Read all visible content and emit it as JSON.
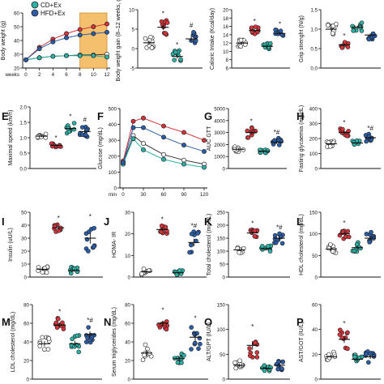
{
  "legend": {
    "items": [
      {
        "label": "CD+Ex",
        "color": "#2ab3a6"
      },
      {
        "label": "HFD+Ex",
        "color": "#2a5ea8"
      }
    ]
  },
  "colors": {
    "CD": "#ffffff",
    "HFD": "#d8323a",
    "CD+Ex": "#2ab3a6",
    "HFD+Ex": "#2a5ea8",
    "highlight": "#f5c06e"
  },
  "chart_data": [
    {
      "panel": "",
      "type": "line",
      "ylabel": "Body weight (g)",
      "xlabel": "weeks",
      "x": [
        0,
        2,
        4,
        6,
        8,
        10,
        12
      ],
      "xticks": [
        "0",
        "2",
        "4",
        "6",
        "8",
        "10",
        "12"
      ],
      "ylim": [
        20,
        60
      ],
      "yticks": [
        "20",
        "30",
        "40",
        "50",
        "60"
      ],
      "highlight_weeks": [
        8,
        12
      ],
      "series": [
        {
          "group": "CD",
          "values": [
            26,
            27.5,
            28.5,
            29,
            29.5,
            29.5,
            30
          ]
        },
        {
          "group": "HFD",
          "values": [
            26,
            35,
            41,
            45,
            48,
            50,
            52
          ]
        },
        {
          "group": "CD+Ex",
          "values": [
            26,
            27.5,
            28.5,
            29,
            29,
            29,
            28
          ]
        },
        {
          "group": "HFD+Ex",
          "values": [
            26,
            34,
            39,
            42,
            44,
            45,
            46
          ]
        }
      ]
    },
    {
      "panel": "",
      "type": "scatter",
      "ylabel": "Body weight gain (8–12 weeks, g)",
      "ylim": [
        -5,
        10
      ],
      "yticks": [
        "-5",
        "0",
        "5",
        "10"
      ],
      "groups": [
        "CD",
        "HFD",
        "CD+Ex",
        "HFD+Ex"
      ],
      "means": [
        1.5,
        5.5,
        -2,
        2.5
      ],
      "spread": [
        1.5,
        2.0,
        1.5,
        2.0
      ],
      "marks": [
        "",
        "*",
        "*",
        "#"
      ]
    },
    {
      "panel": "",
      "type": "scatter",
      "ylabel": "Caloric Intake (Kcal/day)",
      "ylim": [
        6,
        20
      ],
      "yticks": [
        "6",
        "8",
        "10",
        "12",
        "14",
        "16",
        "18",
        "20"
      ],
      "groups": [
        "CD",
        "HFD",
        "CD+Ex",
        "HFD+Ex"
      ],
      "means": [
        12,
        15,
        11.2,
        14.3
      ],
      "spread": [
        0.8,
        0.9,
        0.7,
        0.9
      ],
      "marks": [
        "",
        "*",
        "",
        "*"
      ]
    },
    {
      "panel": "",
      "type": "scatter",
      "ylabel": "Grip strenght (N/g)",
      "ylim": [
        0.0,
        1.5
      ],
      "yticks": [
        "0.0",
        "0.5",
        "1.0",
        "1.5"
      ],
      "groups": [
        "CD",
        "HFD",
        "CD+Ex",
        "HFD+Ex"
      ],
      "means": [
        1.0,
        0.6,
        1.05,
        0.85
      ],
      "spread": [
        0.15,
        0.08,
        0.12,
        0.12
      ],
      "marks": [
        "",
        "*",
        "",
        ""
      ]
    },
    {
      "panel": "E",
      "type": "scatter",
      "ylabel": "Maximal speed (km/h)",
      "ylim": [
        0.0,
        2.0
      ],
      "yticks": [
        "0.0",
        "0.5",
        "1.0",
        "1.5",
        "2.0"
      ],
      "groups": [
        "CD",
        "HFD",
        "CD+Ex",
        "HFD+Ex"
      ],
      "means": [
        1.05,
        0.75,
        1.3,
        1.2
      ],
      "spread": [
        0.1,
        0.06,
        0.2,
        0.2
      ],
      "marks": [
        "",
        "*",
        "*",
        "#"
      ]
    },
    {
      "panel": "F",
      "type": "line",
      "ylabel": "Glucose (mg/dL)",
      "xlabel": "min",
      "x": [
        0,
        15,
        30,
        60,
        90,
        120
      ],
      "xticks": [
        "0",
        "30",
        "60",
        "90",
        "120"
      ],
      "xtick_values": [
        0,
        30,
        60,
        90,
        120
      ],
      "ylim": [
        0,
        500
      ],
      "yticks": [
        "0",
        "100",
        "200",
        "300",
        "400",
        "500"
      ],
      "series": [
        {
          "group": "CD",
          "values": [
            160,
            330,
            280,
            210,
            175,
            150
          ]
        },
        {
          "group": "HFD",
          "values": [
            170,
            420,
            440,
            390,
            350,
            300
          ]
        },
        {
          "group": "CD+Ex",
          "values": [
            150,
            310,
            240,
            180,
            150,
            130
          ]
        },
        {
          "group": "HFD+Ex",
          "values": [
            160,
            380,
            380,
            320,
            270,
            230
          ]
        }
      ]
    },
    {
      "panel": "G",
      "type": "scatter",
      "ylabel": "AUC GTT",
      "ylim": [
        0,
        5000
      ],
      "yticks": [
        "0",
        "1000",
        "2000",
        "3000",
        "4000",
        "5000"
      ],
      "groups": [
        "CD",
        "HFD",
        "CD+Ex",
        "HFD+Ex"
      ],
      "means": [
        1600,
        3000,
        1450,
        2200
      ],
      "spread": [
        250,
        450,
        150,
        350
      ],
      "marks": [
        "",
        "*",
        "",
        "*,#"
      ]
    },
    {
      "panel": "H",
      "type": "scatter",
      "ylabel": "Fasting glycaemia (mg/dL)",
      "ylim": [
        0,
        400
      ],
      "yticks": [
        "0",
        "100",
        "200",
        "300",
        "400"
      ],
      "groups": [
        "CD",
        "HFD",
        "CD+Ex",
        "HFD+Ex"
      ],
      "means": [
        165,
        240,
        170,
        205
      ],
      "spread": [
        20,
        30,
        15,
        25
      ],
      "marks": [
        "",
        "*",
        "",
        "*,#"
      ]
    },
    {
      "panel": "I",
      "type": "scatter",
      "ylabel": "Insulin (uU/L)",
      "ylim": [
        0,
        50
      ],
      "yticks": [
        "0",
        "10",
        "20",
        "30",
        "40",
        "50"
      ],
      "groups": [
        "CD",
        "HFD",
        "CD+Ex",
        "HFD+Ex"
      ],
      "means": [
        6,
        38,
        5,
        30
      ],
      "spread": [
        3,
        3,
        3,
        12
      ],
      "marks": [
        "",
        "*",
        "",
        "*"
      ]
    },
    {
      "panel": "J",
      "type": "scatter",
      "ylabel": "HOMA- IR",
      "ylim": [
        0,
        30
      ],
      "yticks": [
        "0",
        "10",
        "20",
        "30"
      ],
      "groups": [
        "CD",
        "HFD",
        "CD+Ex",
        "HFD+Ex"
      ],
      "means": [
        2.5,
        22,
        2.0,
        16
      ],
      "spread": [
        1.5,
        2,
        1.2,
        5
      ],
      "marks": [
        "",
        "*",
        "",
        "*,#"
      ]
    },
    {
      "panel": "K",
      "type": "scatter",
      "ylabel": "Total cholesterol (mg/dL)",
      "ylim": [
        0,
        250
      ],
      "yticks": [
        "0",
        "50",
        "100",
        "150",
        "200",
        "250"
      ],
      "groups": [
        "CD",
        "HFD",
        "CD+Ex",
        "HFD+Ex"
      ],
      "means": [
        105,
        170,
        110,
        150
      ],
      "spread": [
        12,
        15,
        12,
        20
      ],
      "marks": [
        "",
        "*",
        "",
        "*,#"
      ]
    },
    {
      "panel": "L",
      "type": "scatter",
      "ylabel": "HDL cholesterol (mg/dL)",
      "ylim": [
        0,
        150
      ],
      "yticks": [
        "0",
        "50",
        "100",
        "150"
      ],
      "groups": [
        "CD",
        "HFD",
        "CD+Ex",
        "HFD+Ex"
      ],
      "means": [
        65,
        100,
        68,
        90
      ],
      "spread": [
        12,
        12,
        12,
        15
      ],
      "marks": [
        "",
        "*",
        "",
        ""
      ]
    },
    {
      "panel": "M",
      "type": "scatter",
      "ylabel": "LDL cholesterol (mg/dL)",
      "ylim": [
        0,
        80
      ],
      "yticks": [
        "0",
        "20",
        "40",
        "60",
        "80"
      ],
      "groups": [
        "CD",
        "HFD",
        "CD+Ex",
        "HFD+Ex"
      ],
      "means": [
        38,
        58,
        38,
        48
      ],
      "spread": [
        8,
        8,
        9,
        9
      ],
      "marks": [
        "",
        "*",
        "",
        "*,#"
      ]
    },
    {
      "panel": "N",
      "type": "scatter",
      "ylabel": "Serum triglycerides (mg/dL)",
      "ylim": [
        0,
        80
      ],
      "yticks": [
        "0",
        "20",
        "40",
        "60",
        "80"
      ],
      "groups": [
        "CD",
        "HFD",
        "CD+Ex",
        "HFD+Ex"
      ],
      "means": [
        28,
        60,
        22,
        45
      ],
      "spread": [
        10,
        8,
        7,
        14
      ],
      "marks": [
        "",
        "*",
        "",
        "*"
      ]
    },
    {
      "panel": "O",
      "type": "scatter",
      "ylabel": "ALT/GPT (IU/L)",
      "ylim": [
        0,
        150
      ],
      "yticks": [
        "0",
        "50",
        "100",
        "150"
      ],
      "groups": [
        "CD",
        "HFD",
        "CD+Ex",
        "HFD+Ex"
      ],
      "means": [
        28,
        68,
        22,
        28
      ],
      "spread": [
        10,
        25,
        6,
        10
      ],
      "marks": [
        "",
        "*",
        "",
        ""
      ]
    },
    {
      "panel": "P",
      "type": "scatter",
      "ylabel": "AST/GOT (IU/L)",
      "ylim": [
        0,
        60
      ],
      "yticks": [
        "0",
        "20",
        "40",
        "60"
      ],
      "groups": [
        "CD",
        "HFD",
        "CD+Ex",
        "HFD+Ex"
      ],
      "means": [
        18,
        32,
        16,
        18
      ],
      "spread": [
        4,
        8,
        4,
        5
      ],
      "marks": [
        "",
        "*",
        "",
        ""
      ]
    }
  ]
}
